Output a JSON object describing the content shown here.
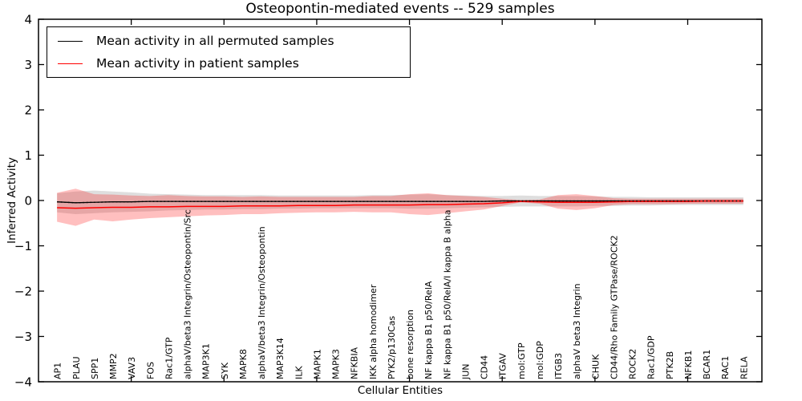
{
  "figure": {
    "title": "Osteopontin-mediated events -- 529 samples",
    "xlabel": "Cellular Entities",
    "ylabel": "Inferred Activity"
  },
  "chart_data": {
    "type": "line",
    "title": "Osteopontin-mediated events -- 529 samples",
    "xlabel": "Cellular Entities",
    "ylabel": "Inferred Activity",
    "ylim": [
      -4,
      4
    ],
    "yticks": [
      -4,
      -3,
      -2,
      -1,
      0,
      1,
      2,
      3,
      4
    ],
    "xlim": [
      0,
      39
    ],
    "xticks": [
      5,
      10,
      15,
      20,
      25,
      30,
      35
    ],
    "grid": false,
    "legend_position": "upper left",
    "categories": [
      "AP1",
      "PLAU",
      "SPP1",
      "MMP2",
      "VAV3",
      "FOS",
      "Rac1/GTP",
      "alphaV/beta3 Integrin/Osteopontin/Src",
      "MAP3K1",
      "SYK",
      "MAPK8",
      "alphaV/beta3 Integrin/Osteopontin",
      "MAP3K14",
      "ILK",
      "MAPK1",
      "MAPK3",
      "NFKBIA",
      "IKK alpha homodimer",
      "PYK2/p130Cas",
      "bone resorption",
      "NF kappa B1 p50/RelA",
      "NF kappa B1 p50/RelA/I kappa B alpha",
      "JUN",
      "CD44",
      "ITGAV",
      "mol:GTP",
      "mol:GDP",
      "ITGB3",
      "alphaV beta3 Integrin",
      "CHUK",
      "CD44/Rho Family GTPase/ROCK2",
      "ROCK2",
      "Rac1/GDP",
      "PTK2B",
      "NFKB1",
      "BCAR1",
      "RAC1",
      "RELA"
    ],
    "series": [
      {
        "name": "Mean activity in all permuted samples",
        "color": "#000000",
        "line_style": "solid",
        "band_color": "rgba(125,125,125,0.25)",
        "values": [
          -0.03,
          -0.05,
          -0.04,
          -0.03,
          -0.03,
          -0.02,
          -0.02,
          -0.02,
          -0.02,
          -0.02,
          -0.02,
          -0.02,
          -0.02,
          -0.02,
          -0.02,
          -0.02,
          -0.02,
          -0.02,
          -0.02,
          -0.02,
          -0.02,
          -0.02,
          -0.02,
          -0.02,
          -0.01,
          -0.01,
          -0.01,
          -0.01,
          -0.01,
          -0.01,
          -0.01,
          -0.01,
          -0.01,
          -0.01,
          -0.01,
          -0.01,
          -0.01,
          -0.01
        ],
        "band_upper": [
          0.16,
          0.2,
          0.22,
          0.2,
          0.18,
          0.15,
          0.14,
          0.13,
          0.12,
          0.12,
          0.12,
          0.12,
          0.11,
          0.11,
          0.11,
          0.11,
          0.11,
          0.12,
          0.12,
          0.13,
          0.14,
          0.12,
          0.11,
          0.1,
          0.1,
          0.11,
          0.1,
          0.1,
          0.1,
          0.09,
          0.08,
          0.08,
          0.07,
          0.07,
          0.07,
          0.07,
          0.07,
          0.07
        ],
        "band_lower": [
          -0.26,
          -0.3,
          -0.28,
          -0.26,
          -0.25,
          -0.24,
          -0.22,
          -0.21,
          -0.2,
          -0.2,
          -0.19,
          -0.19,
          -0.18,
          -0.18,
          -0.17,
          -0.17,
          -0.17,
          -0.17,
          -0.17,
          -0.18,
          -0.18,
          -0.17,
          -0.16,
          -0.15,
          -0.14,
          -0.13,
          -0.13,
          -0.13,
          -0.13,
          -0.12,
          -0.12,
          -0.11,
          -0.11,
          -0.1,
          -0.1,
          -0.1,
          -0.1,
          -0.1
        ]
      },
      {
        "name": "Mean activity in patient samples",
        "color": "#ff0000",
        "line_style": "solid",
        "band_color": "rgba(255,0,0,0.25)",
        "values": [
          -0.16,
          -0.17,
          -0.16,
          -0.15,
          -0.15,
          -0.14,
          -0.14,
          -0.13,
          -0.13,
          -0.13,
          -0.12,
          -0.12,
          -0.12,
          -0.11,
          -0.11,
          -0.11,
          -0.1,
          -0.1,
          -0.1,
          -0.1,
          -0.09,
          -0.09,
          -0.08,
          -0.07,
          -0.05,
          -0.02,
          -0.03,
          -0.04,
          -0.04,
          -0.04,
          -0.03,
          -0.02,
          -0.02,
          -0.02,
          -0.02,
          -0.01,
          -0.01,
          -0.01
        ],
        "band_upper": [
          0.17,
          0.26,
          0.14,
          0.13,
          0.11,
          0.1,
          0.12,
          0.1,
          0.09,
          0.09,
          0.08,
          0.09,
          0.08,
          0.08,
          0.08,
          0.08,
          0.08,
          0.1,
          0.1,
          0.14,
          0.16,
          0.12,
          0.1,
          0.08,
          0.04,
          0.01,
          0.02,
          0.12,
          0.14,
          0.1,
          0.05,
          0.04,
          0.04,
          0.04,
          0.04,
          0.04,
          0.04,
          0.04
        ],
        "band_lower": [
          -0.47,
          -0.56,
          -0.42,
          -0.46,
          -0.42,
          -0.39,
          -0.37,
          -0.35,
          -0.33,
          -0.32,
          -0.3,
          -0.3,
          -0.28,
          -0.27,
          -0.26,
          -0.26,
          -0.25,
          -0.26,
          -0.26,
          -0.3,
          -0.32,
          -0.28,
          -0.24,
          -0.2,
          -0.12,
          -0.04,
          -0.07,
          -0.18,
          -0.21,
          -0.17,
          -0.1,
          -0.08,
          -0.08,
          -0.08,
          -0.07,
          -0.07,
          -0.07,
          -0.07
        ]
      }
    ],
    "zero_reference_line": {
      "style": "dotted",
      "color": "#000000"
    }
  }
}
